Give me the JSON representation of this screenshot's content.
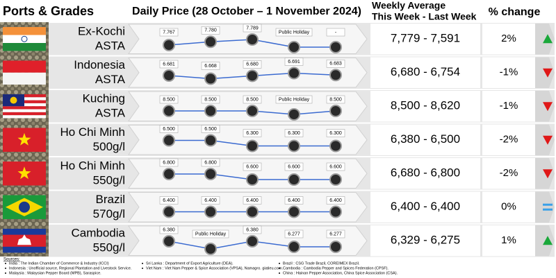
{
  "header": {
    "ports": "Ports & Grades",
    "daily": "Daily Price (28 October – 1 November 2024)",
    "weekly": [
      "Weekly Average",
      "This Week - Last Week"
    ],
    "change": "% change"
  },
  "rows": [
    {
      "name": [
        "Ex-Kochi",
        "ASTA"
      ],
      "prices": [
        {
          "value": 7767,
          "label": "7.767"
        },
        {
          "value": 7780,
          "label": "7.780"
        },
        {
          "value": 7789,
          "label": "7.789"
        },
        {
          "value": null,
          "label": "Public Holiday"
        },
        {
          "value": null,
          "label": "-"
        }
      ],
      "weekly": "7,779 - 7,591",
      "change": "2%",
      "trend": "up"
    },
    {
      "name": [
        "Indonesia",
        "ASTA"
      ],
      "prices": [
        {
          "value": 6681,
          "label": "6.681"
        },
        {
          "value": 6668,
          "label": "6.668"
        },
        {
          "value": 6680,
          "label": "6.680"
        },
        {
          "value": 6691,
          "label": "6.691"
        },
        {
          "value": 6683,
          "label": "6.683"
        }
      ],
      "weekly": "6,680 - 6,754",
      "change": "-1%",
      "trend": "down"
    },
    {
      "name": [
        "Kuching",
        "ASTA"
      ],
      "prices": [
        {
          "value": 8500,
          "label": "8.500"
        },
        {
          "value": 8500,
          "label": "8.500"
        },
        {
          "value": 8500,
          "label": "8.500"
        },
        {
          "value": null,
          "label": "Public Holiday"
        },
        {
          "value": 8500,
          "label": "8.500"
        }
      ],
      "weekly": "8,500 - 8,620",
      "change": "-1%",
      "trend": "down"
    },
    {
      "name": [
        "Ho Chi Minh",
        "500g/l"
      ],
      "prices": [
        {
          "value": 6500,
          "label": "6.500"
        },
        {
          "value": 6500,
          "label": "6.500"
        },
        {
          "value": 6300,
          "label": "6.300"
        },
        {
          "value": 6300,
          "label": "6.300"
        },
        {
          "value": 6300,
          "label": "6.300"
        }
      ],
      "weekly": "6,380 - 6,500",
      "change": "-2%",
      "trend": "down"
    },
    {
      "name": [
        "Ho Chi Minh",
        "550g/l"
      ],
      "prices": [
        {
          "value": 6800,
          "label": "6.800"
        },
        {
          "value": 6800,
          "label": "6.800"
        },
        {
          "value": 6600,
          "label": "6.600"
        },
        {
          "value": 6600,
          "label": "6.600"
        },
        {
          "value": 6600,
          "label": "6.600"
        }
      ],
      "weekly": "6,680 - 6,800",
      "change": "-2%",
      "trend": "down"
    },
    {
      "name": [
        "Brazil",
        "570g/l"
      ],
      "prices": [
        {
          "value": 6400,
          "label": "6.400"
        },
        {
          "value": 6400,
          "label": "6.400"
        },
        {
          "value": 6400,
          "label": "6.400"
        },
        {
          "value": 6400,
          "label": "6.400"
        },
        {
          "value": 6400,
          "label": "6.400"
        }
      ],
      "weekly": "6,400 - 6,400",
      "change": "0%",
      "trend": "equal"
    },
    {
      "name": [
        "Cambodia",
        "550g/l"
      ],
      "prices": [
        {
          "value": 6380,
          "label": "6.380"
        },
        {
          "value": null,
          "label": "Public Holiday"
        },
        {
          "value": 6380,
          "label": "6.380"
        },
        {
          "value": 6277,
          "label": "6.277"
        },
        {
          "value": 6277,
          "label": "6.277"
        }
      ],
      "weekly": "6,329 - 6,275",
      "change": "1%",
      "trend": "up"
    }
  ],
  "sources": {
    "title": "Sources:",
    "columns": [
      [
        "India : The Indian Chamber of Commerce & Industry (ICCI)",
        "Indonesia : Unofficial source, Regional Plantation and Livestock Service.",
        "Malaysia : Malaysian Pepper Board (MPB), Saraspice."
      ],
      [
        "Sri Lanka : Department of Export Agriculture (DEA).",
        "Viet Nam : Viet Nam Pepper & Spice Association (VPSA), Namagro. giatieu.com."
      ],
      [
        "Brazil : CSG Trade Brazil, COREIMEX Brazil.",
        "Cambodia : Cambodia Pepper and Spices Federation (CPSF).",
        "China : Hainan Pepper Association, China Spice Association (CSA)."
      ]
    ]
  }
}
